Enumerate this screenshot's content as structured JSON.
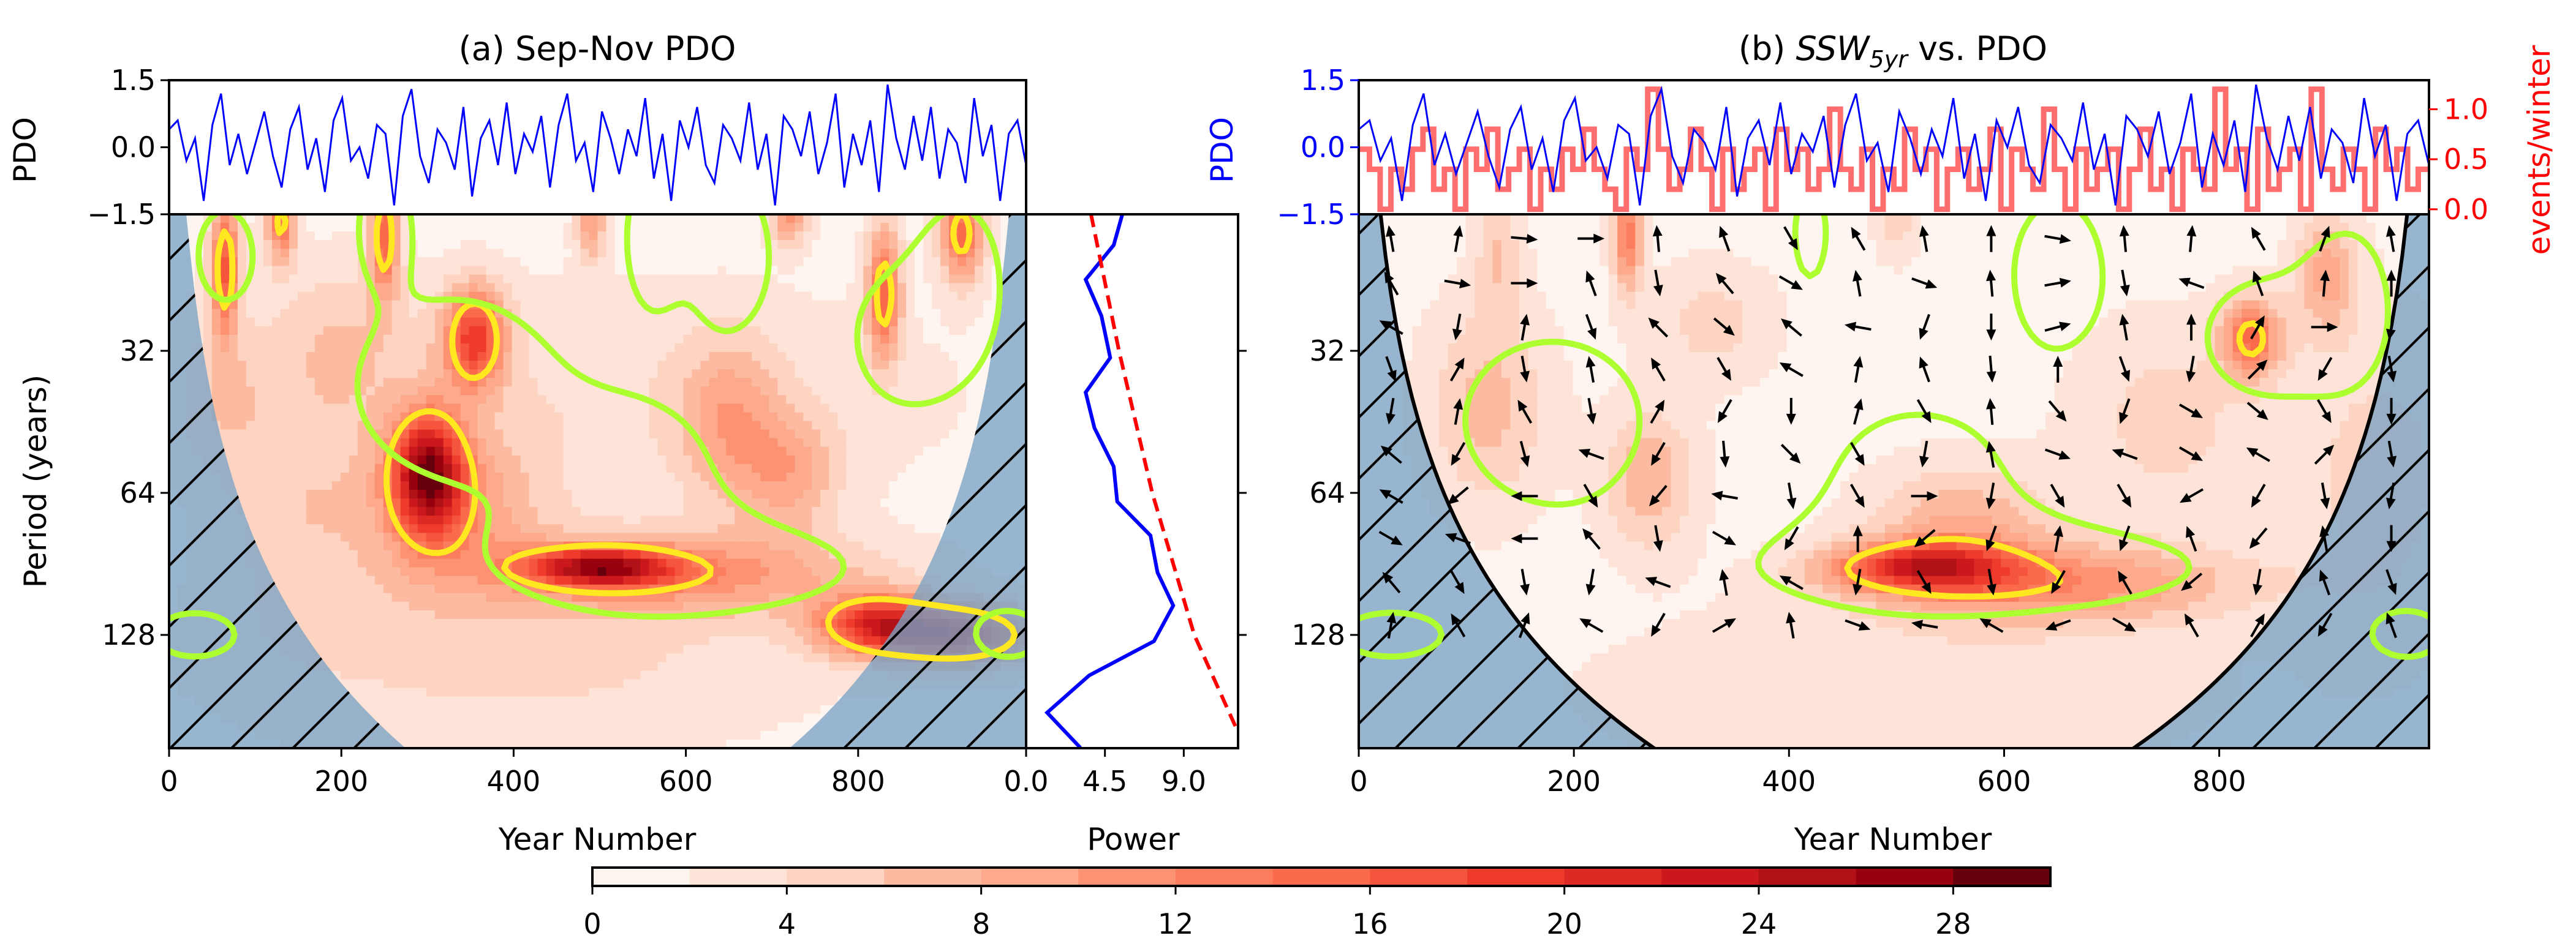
{
  "pdo_series": {
    "years_span": [
      0,
      995
    ],
    "values": [
      0.4,
      0.6,
      -0.3,
      0.2,
      -1.2,
      0.5,
      1.2,
      -0.4,
      0.3,
      -0.6,
      0.1,
      0.8,
      -0.2,
      -0.9,
      0.4,
      0.9,
      -0.5,
      0.2,
      -1.0,
      0.6,
      1.1,
      -0.3,
      0.0,
      -0.7,
      0.5,
      0.3,
      -1.3,
      0.7,
      1.3,
      -0.2,
      -0.8,
      0.4,
      0.1,
      -0.5,
      0.9,
      -1.1,
      0.2,
      0.6,
      -0.4,
      1.0,
      -0.6,
      0.3,
      -0.1,
      0.7,
      -0.9,
      0.5,
      1.2,
      -0.3,
      0.1,
      -1.0,
      0.8,
      0.2,
      -0.6,
      0.4,
      -0.2,
      1.1,
      -0.7,
      0.3,
      -1.2,
      0.6,
      0.0,
      0.9,
      -0.4,
      -0.8,
      0.5,
      0.2,
      -0.3,
      1.0,
      -0.5,
      0.3,
      -1.3,
      0.7,
      0.4,
      -0.2,
      0.8,
      -0.6,
      0.1,
      1.2,
      -0.9,
      0.3,
      -0.4,
      0.6,
      -1.0,
      1.4,
      0.2,
      -0.5,
      0.7,
      -0.3,
      0.9,
      -0.7,
      0.4,
      0.1,
      -0.8,
      1.1,
      -0.2,
      0.5,
      -1.2,
      0.3,
      0.6,
      -0.4
    ],
    "color": "#0000ff"
  },
  "chart_data": [
    {
      "type": "heatmap",
      "title": "(a) Sep-Nov PDO",
      "xlabel": "Year Number",
      "ylabel": "Period (years)",
      "xlim": [
        0,
        995
      ],
      "ylim": [
        16.4,
        222
      ],
      "y_scale": "log2",
      "xticks": [
        0,
        200,
        400,
        600,
        800
      ],
      "xtick_labels": [
        "0",
        "200",
        "400",
        "600",
        "800"
      ],
      "yticks": [
        32,
        64,
        128
      ],
      "ytick_labels": [
        "32",
        "64",
        "128"
      ],
      "top_panel": {
        "ylabel": "PDO",
        "ylim": [
          -1.5,
          1.5
        ],
        "yticks": [
          1.5,
          0.0,
          -1.5
        ],
        "ytick_labels": [
          "1.5",
          "0.0",
          "−1.5"
        ]
      },
      "background_power": 1.0,
      "power_hotspots": [
        [
          65,
          21,
          15,
          12,
          0.35
        ],
        [
          130,
          17,
          13,
          12,
          0.2
        ],
        [
          250,
          18,
          15,
          12,
          0.3
        ],
        [
          355,
          30,
          17,
          25,
          0.25
        ],
        [
          300,
          58,
          22,
          30,
          0.3
        ],
        [
          330,
          70,
          8,
          70,
          0.4
        ],
        [
          500,
          92,
          19,
          60,
          0.1
        ],
        [
          600,
          95,
          9,
          150,
          0.2
        ],
        [
          830,
          24,
          14,
          14,
          0.35
        ],
        [
          920,
          18,
          14,
          18,
          0.25
        ],
        [
          720,
          16.5,
          10,
          15,
          0.15
        ],
        [
          490,
          17,
          9,
          12,
          0.2
        ],
        [
          650,
          45,
          7,
          40,
          0.4
        ],
        [
          720,
          58,
          7,
          40,
          0.3
        ],
        [
          820,
          122,
          17,
          50,
          0.15
        ],
        [
          920,
          128,
          20,
          60,
          0.15
        ],
        [
          400,
          140,
          4,
          250,
          0.5
        ],
        [
          150,
          70,
          4,
          60,
          0.6
        ],
        [
          500,
          40,
          3,
          300,
          0.6
        ],
        [
          60,
          40,
          4,
          40,
          0.4
        ],
        [
          200,
          30,
          4,
          60,
          0.4
        ]
      ],
      "hotspot_fields": [
        "year",
        "period",
        "power",
        "year_spread",
        "octave_spread"
      ],
      "yellow_contour_power": 13,
      "green_significance_regions": [
        [
          65,
          20,
          30,
          0.3
        ],
        [
          250,
          17,
          25,
          0.3
        ],
        [
          560,
          18,
          25,
          0.4
        ],
        [
          330,
          38,
          110,
          0.6
        ],
        [
          600,
          92,
          180,
          0.3
        ],
        [
          540,
          60,
          80,
          0.45
        ],
        [
          860,
          30,
          60,
          0.45
        ],
        [
          920,
          22,
          35,
          0.4
        ],
        [
          30,
          128,
          45,
          0.15
        ],
        [
          975,
          128,
          35,
          0.15
        ],
        [
          650,
          20,
          45,
          0.5
        ]
      ],
      "coi_factor": 0.81,
      "hatch": "outside cone of influence",
      "power_spectrum": {
        "xlabel": "Power",
        "xlim": [
          0,
          12.1
        ],
        "xticks": [
          0.0,
          4.5,
          9.0
        ],
        "xtick_labels": [
          "0.0",
          "4.5",
          "9.0"
        ],
        "period": [
          16.4,
          19.1,
          22.6,
          27.0,
          33.1,
          39.2,
          46.6,
          56.3,
          66.8,
          78.8,
          94.4,
          110.9,
          132,
          156,
          187,
          222
        ],
        "power": [
          5.5,
          5.0,
          3.4,
          4.3,
          4.8,
          3.4,
          3.9,
          5.0,
          5.2,
          7.1,
          7.5,
          8.4,
          7.3,
          3.6,
          1.2,
          3.1
        ],
        "color": "#0000ff",
        "significance": {
          "period": [
            16.4,
            32,
            64,
            128,
            222
          ],
          "power": [
            3.7,
            5.3,
            7.2,
            9.6,
            12.5
          ],
          "color": "#ff0000",
          "style": "dashed"
        }
      }
    },
    {
      "type": "heatmap",
      "title_prefix": "(b) ",
      "title_ssw": "SSW",
      "title_sub": "5yr",
      "title_suffix": " vs. PDO",
      "xlabel": "Year Number",
      "xlim": [
        0,
        995
      ],
      "ylim": [
        16.4,
        222
      ],
      "y_scale": "log2",
      "xticks": [
        0,
        200,
        400,
        600,
        800
      ],
      "xtick_labels": [
        "0",
        "200",
        "400",
        "600",
        "800"
      ],
      "yticks": [
        32,
        64,
        128
      ],
      "ytick_labels": [
        "32",
        "64",
        "128"
      ],
      "top_panel": {
        "ylabel": "PDO",
        "ylabel_color": "#0000ff",
        "ylim": [
          -1.5,
          1.5
        ],
        "yticks": [
          1.5,
          0.0,
          -1.5
        ],
        "ytick_labels": [
          "1.5",
          "0.0",
          "−1.5"
        ],
        "right_ylabel": "events/winter",
        "right_color": "#ff0000",
        "right_ylim": [
          -0.05,
          1.29
        ],
        "right_yticks": [
          1.0,
          0.5,
          0.0
        ],
        "right_ytick_labels": [
          "1.0",
          "0.5",
          "0.0"
        ],
        "ssw_color": "#ff6666",
        "ssw_values": [
          0.6,
          0.4,
          0.0,
          0.4,
          0.2,
          0.6,
          0.8,
          0.2,
          0.4,
          0.0,
          0.6,
          0.4,
          0.8,
          0.2,
          0.4,
          0.6,
          0.0,
          0.4,
          0.2,
          0.6,
          0.4,
          0.8,
          0.4,
          0.2,
          0.0,
          0.6,
          0.4,
          1.2,
          0.6,
          0.2,
          0.4,
          0.8,
          0.4,
          0.0,
          0.6,
          0.2,
          0.4,
          0.6,
          0.0,
          0.8,
          0.4,
          0.6,
          0.2,
          0.4,
          1.0,
          0.4,
          0.2,
          0.6,
          0.0,
          0.4,
          0.2,
          0.8,
          0.4,
          0.6,
          0.0,
          0.4,
          0.6,
          0.2,
          0.4,
          0.8,
          0.0,
          0.6,
          0.4,
          0.2,
          1.0,
          0.4,
          0.0,
          0.6,
          0.2,
          0.4,
          0.6,
          0.0,
          0.4,
          0.8,
          0.2,
          0.4,
          0.0,
          0.6,
          0.4,
          0.2,
          1.2,
          0.4,
          0.6,
          0.0,
          0.8,
          0.2,
          0.4,
          0.6,
          0.0,
          1.2,
          0.4,
          0.2,
          0.6,
          0.4,
          0.0,
          0.8,
          0.4,
          0.6,
          0.2,
          0.4
        ]
      },
      "background_power": 1.2,
      "power_hotspots": [
        [
          520,
          92,
          16,
          60,
          0.12
        ],
        [
          650,
          100,
          10,
          120,
          0.2
        ],
        [
          560,
          75,
          7,
          60,
          0.3
        ],
        [
          830,
          30,
          13,
          20,
          0.2
        ],
        [
          250,
          18,
          12,
          10,
          0.3
        ],
        [
          130,
          20,
          5,
          15,
          0.3
        ],
        [
          120,
          42,
          6,
          40,
          0.5
        ],
        [
          270,
          60,
          7,
          30,
          0.35
        ],
        [
          330,
          28,
          4,
          40,
          0.3
        ],
        [
          900,
          22,
          8,
          20,
          0.3
        ],
        [
          500,
          170,
          3,
          200,
          0.4
        ],
        [
          750,
          45,
          4,
          60,
          0.5
        ],
        [
          500,
          17,
          4,
          15,
          0.2
        ],
        [
          950,
          60,
          4,
          60,
          0.8
        ]
      ],
      "hotspot_fields": [
        "year",
        "period",
        "power",
        "year_spread",
        "octave_spread"
      ],
      "yellow_contour_power": 13,
      "green_significance_regions": [
        [
          180,
          45,
          80,
          0.55
        ],
        [
          580,
          92,
          190,
          0.3
        ],
        [
          520,
          60,
          70,
          0.45
        ],
        [
          850,
          30,
          60,
          0.4
        ],
        [
          920,
          25,
          28,
          0.4
        ],
        [
          650,
          22,
          40,
          0.5
        ],
        [
          420,
          18,
          14,
          0.3
        ],
        [
          30,
          128,
          45,
          0.15
        ],
        [
          975,
          128,
          30,
          0.15
        ]
      ],
      "coi_factor": 0.81,
      "hatch": "outside cone of influence",
      "phase_arrows": {
        "years": [
          30,
          92,
          154,
          216,
          278,
          340,
          402,
          464,
          526,
          588,
          650,
          712,
          774,
          836,
          898,
          960
        ],
        "periods": [
          18.5,
          23,
          28.5,
          35,
          43,
          53,
          65,
          80,
          99,
          122
        ],
        "angles_deg": [
          [
            100,
            80,
            -5,
            0,
            95,
            110,
            -60,
            120,
            100,
            90,
            -10,
            95,
            85,
            120,
            70,
            100
          ],
          [
            120,
            -10,
            0,
            110,
            -80,
            130,
            -30,
            100,
            -20,
            95,
            10,
            -80,
            160,
            110,
            85,
            90
          ],
          [
            150,
            -100,
            80,
            -70,
            135,
            -40,
            140,
            170,
            -110,
            -90,
            15,
            100,
            90,
            60,
            0,
            -100
          ],
          [
            -70,
            60,
            -80,
            100,
            120,
            -60,
            150,
            80,
            110,
            -85,
            90,
            -70,
            -100,
            45,
            -120,
            -80
          ],
          [
            -100,
            80,
            120,
            -80,
            60,
            -120,
            -90,
            75,
            -60,
            95,
            -50,
            -110,
            -30,
            -40,
            -60,
            -90
          ],
          [
            140,
            -120,
            -75,
            160,
            -120,
            -85,
            -45,
            -60,
            -100,
            100,
            -20,
            160,
            -30,
            150,
            45,
            -80
          ],
          [
            150,
            -140,
            180,
            -60,
            -130,
            170,
            -80,
            -60,
            0,
            -100,
            -60,
            -60,
            -150,
            -120,
            -80,
            -100
          ],
          [
            -30,
            160,
            180,
            130,
            -80,
            -30,
            -120,
            90,
            -140,
            -110,
            80,
            -110,
            110,
            -130,
            100,
            -90
          ],
          [
            130,
            -60,
            -80,
            -100,
            160,
            100,
            150,
            -100,
            -60,
            -80,
            -120,
            120,
            -140,
            -100,
            110,
            -70
          ],
          [
            80,
            120,
            70,
            150,
            -120,
            30,
            100,
            -20,
            170,
            150,
            -160,
            -30,
            120,
            60,
            -120,
            110
          ]
        ]
      }
    }
  ],
  "colorbar": {
    "min": 0,
    "max": 30,
    "step": 2,
    "ticks": [
      0,
      4,
      8,
      12,
      16,
      20,
      24,
      28
    ],
    "tick_labels": [
      "0",
      "4",
      "8",
      "12",
      "16",
      "20",
      "24",
      "28"
    ],
    "colors": [
      "#fff5f0",
      "#fee4d8",
      "#fdd4c2",
      "#fcbba1",
      "#fca98c",
      "#fc9272",
      "#fb7d5d",
      "#fb6a4a",
      "#f5553c",
      "#ef3b2c",
      "#dd2a25",
      "#cb181d",
      "#b11218",
      "#99000d",
      "#67000d"
    ]
  },
  "contour_colors": {
    "green": "#adff2f",
    "yellow": "#ffe81f",
    "hatch_fill": "#7aa3c4"
  }
}
